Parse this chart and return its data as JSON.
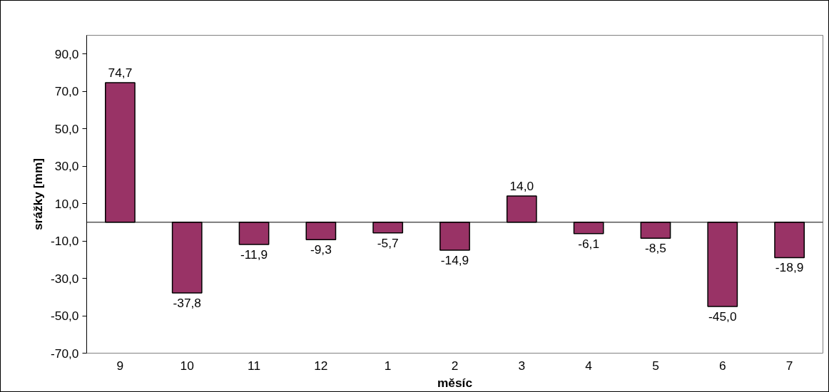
{
  "chart_data": {
    "type": "bar",
    "xlabel": "měsíc",
    "ylabel": "srážky [mm]",
    "categories": [
      "9",
      "10",
      "11",
      "12",
      "1",
      "2",
      "3",
      "4",
      "5",
      "6",
      "7"
    ],
    "values": [
      74.7,
      -37.8,
      -11.9,
      -9.3,
      -5.7,
      -14.9,
      14.0,
      -6.1,
      -8.5,
      -45.0,
      -18.9
    ],
    "value_labels": [
      "74,7",
      "-37,8",
      "-11,9",
      "-9,3",
      "-5,7",
      "-14,9",
      "14,0",
      "-6,1",
      "-8,5",
      "-45,0",
      "-18,9"
    ],
    "color": "#993366",
    "ylim": [
      -70,
      100
    ],
    "yticks": [
      {
        "value": -70,
        "label": "-70,0"
      },
      {
        "value": -50,
        "label": "-50,0"
      },
      {
        "value": -30,
        "label": "-30,0"
      },
      {
        "value": -10,
        "label": "-10,0"
      },
      {
        "value": 10,
        "label": "10,0"
      },
      {
        "value": 30,
        "label": "30,0"
      },
      {
        "value": 50,
        "label": "50,0"
      },
      {
        "value": 70,
        "label": "70,0"
      },
      {
        "value": 90,
        "label": "90,0"
      }
    ],
    "grid": false
  }
}
